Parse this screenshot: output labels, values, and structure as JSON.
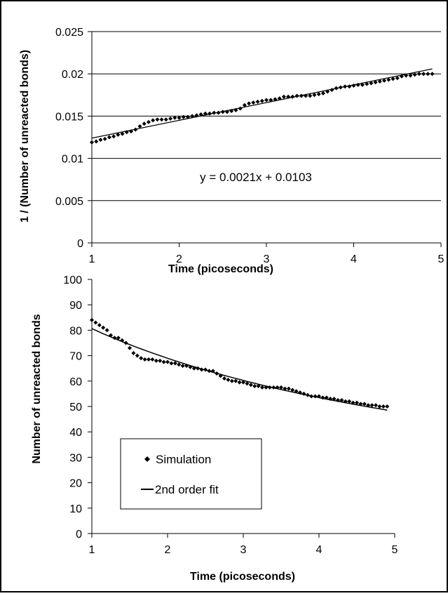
{
  "chart_data": [
    {
      "type": "scatter",
      "xlabel": "Time (picoseconds)",
      "ylabel": "1 / (Number of unreacted bonds)",
      "xlim": [
        1,
        5
      ],
      "ylim": [
        0,
        0.025
      ],
      "x_ticks": [
        "1",
        "2",
        "3",
        "4",
        "5"
      ],
      "y_ticks": [
        "0",
        "0.005",
        "0.01",
        "0.015",
        "0.02",
        "0.025"
      ],
      "grid": "horizontal",
      "annotation": "y = 0.0021x + 0.0103",
      "fit": {
        "type": "linear",
        "slope": 0.0021,
        "intercept": 0.0103,
        "x_range": [
          1,
          4.9
        ]
      },
      "series": [
        {
          "marker": "diamond",
          "points": [
            [
              1.0,
              0.0119
            ],
            [
              1.05,
              0.012
            ],
            [
              1.1,
              0.0122
            ],
            [
              1.15,
              0.0123
            ],
            [
              1.2,
              0.0125
            ],
            [
              1.25,
              0.0126
            ],
            [
              1.3,
              0.0128
            ],
            [
              1.35,
              0.0129
            ],
            [
              1.4,
              0.0131
            ],
            [
              1.45,
              0.0132
            ],
            [
              1.5,
              0.0134
            ],
            [
              1.55,
              0.0138
            ],
            [
              1.6,
              0.0141
            ],
            [
              1.65,
              0.0143
            ],
            [
              1.7,
              0.0145
            ],
            [
              1.75,
              0.0146
            ],
            [
              1.8,
              0.0146
            ],
            [
              1.85,
              0.0146
            ],
            [
              1.9,
              0.0147
            ],
            [
              1.95,
              0.0148
            ],
            [
              2.0,
              0.0148
            ],
            [
              2.05,
              0.0149
            ],
            [
              2.1,
              0.0149
            ],
            [
              2.15,
              0.015
            ],
            [
              2.2,
              0.0151
            ],
            [
              2.25,
              0.0152
            ],
            [
              2.3,
              0.0153
            ],
            [
              2.35,
              0.0153
            ],
            [
              2.4,
              0.0154
            ],
            [
              2.45,
              0.0154
            ],
            [
              2.5,
              0.0155
            ],
            [
              2.55,
              0.0155
            ],
            [
              2.6,
              0.0156
            ],
            [
              2.65,
              0.0157
            ],
            [
              2.7,
              0.0159
            ],
            [
              2.75,
              0.0163
            ],
            [
              2.8,
              0.0165
            ],
            [
              2.85,
              0.0166
            ],
            [
              2.9,
              0.0167
            ],
            [
              2.95,
              0.0168
            ],
            [
              3.0,
              0.0169
            ],
            [
              3.05,
              0.0169
            ],
            [
              3.1,
              0.017
            ],
            [
              3.15,
              0.0171
            ],
            [
              3.2,
              0.0173
            ],
            [
              3.25,
              0.0173
            ],
            [
              3.3,
              0.0173
            ],
            [
              3.35,
              0.0174
            ],
            [
              3.4,
              0.0174
            ],
            [
              3.45,
              0.0174
            ],
            [
              3.5,
              0.0174
            ],
            [
              3.55,
              0.0175
            ],
            [
              3.6,
              0.0176
            ],
            [
              3.65,
              0.0177
            ],
            [
              3.7,
              0.0179
            ],
            [
              3.75,
              0.0181
            ],
            [
              3.8,
              0.0183
            ],
            [
              3.85,
              0.0184
            ],
            [
              3.9,
              0.0185
            ],
            [
              3.95,
              0.0185
            ],
            [
              4.0,
              0.0186
            ],
            [
              4.05,
              0.0187
            ],
            [
              4.1,
              0.0187
            ],
            [
              4.15,
              0.0188
            ],
            [
              4.2,
              0.0189
            ],
            [
              4.25,
              0.019
            ],
            [
              4.3,
              0.0191
            ],
            [
              4.35,
              0.0192
            ],
            [
              4.4,
              0.0193
            ],
            [
              4.45,
              0.0194
            ],
            [
              4.5,
              0.0195
            ],
            [
              4.55,
              0.0197
            ],
            [
              4.6,
              0.0198
            ],
            [
              4.65,
              0.0198
            ],
            [
              4.7,
              0.0199
            ],
            [
              4.75,
              0.02
            ],
            [
              4.8,
              0.02
            ],
            [
              4.85,
              0.02
            ],
            [
              4.9,
              0.02
            ]
          ]
        }
      ]
    },
    {
      "type": "scatter",
      "xlabel": "Time (picoseconds)",
      "ylabel": "Number of unreacted bonds",
      "xlim": [
        1,
        5
      ],
      "ylim": [
        0,
        100
      ],
      "x_ticks": [
        "1",
        "2",
        "3",
        "4",
        "5"
      ],
      "y_ticks": [
        "0",
        "10",
        "20",
        "30",
        "40",
        "50",
        "60",
        "70",
        "80",
        "90",
        "100"
      ],
      "grid": "none",
      "legend_position": "lower-left",
      "series": [
        {
          "name": "Simulation",
          "marker": "diamond",
          "points": [
            [
              1.0,
              84
            ],
            [
              1.05,
              83
            ],
            [
              1.1,
              82
            ],
            [
              1.15,
              81
            ],
            [
              1.2,
              80
            ],
            [
              1.25,
              78
            ],
            [
              1.3,
              77
            ],
            [
              1.35,
              77
            ],
            [
              1.4,
              76
            ],
            [
              1.45,
              75
            ],
            [
              1.5,
              73
            ],
            [
              1.55,
              71
            ],
            [
              1.6,
              70
            ],
            [
              1.65,
              69
            ],
            [
              1.7,
              68.5
            ],
            [
              1.75,
              68.5
            ],
            [
              1.8,
              68.5
            ],
            [
              1.85,
              68
            ],
            [
              1.9,
              68
            ],
            [
              1.95,
              67.5
            ],
            [
              2.0,
              67.5
            ],
            [
              2.05,
              67
            ],
            [
              2.1,
              67
            ],
            [
              2.15,
              66.5
            ],
            [
              2.2,
              66
            ],
            [
              2.25,
              66
            ],
            [
              2.3,
              65.5
            ],
            [
              2.35,
              65
            ],
            [
              2.4,
              65
            ],
            [
              2.45,
              64.5
            ],
            [
              2.5,
              64.5
            ],
            [
              2.55,
              64
            ],
            [
              2.6,
              64
            ],
            [
              2.65,
              63
            ],
            [
              2.7,
              62
            ],
            [
              2.75,
              61
            ],
            [
              2.8,
              60.5
            ],
            [
              2.85,
              60
            ],
            [
              2.9,
              60
            ],
            [
              2.95,
              59.5
            ],
            [
              3.0,
              59.5
            ],
            [
              3.05,
              59
            ],
            [
              3.1,
              58.5
            ],
            [
              3.15,
              58
            ],
            [
              3.2,
              58
            ],
            [
              3.25,
              57.5
            ],
            [
              3.3,
              57.5
            ],
            [
              3.35,
              57.5
            ],
            [
              3.4,
              57.5
            ],
            [
              3.45,
              57.5
            ],
            [
              3.5,
              57.5
            ],
            [
              3.55,
              57
            ],
            [
              3.6,
              57
            ],
            [
              3.65,
              56.5
            ],
            [
              3.7,
              56
            ],
            [
              3.75,
              55.5
            ],
            [
              3.8,
              55
            ],
            [
              3.85,
              54.5
            ],
            [
              3.9,
              54
            ],
            [
              3.95,
              54
            ],
            [
              4.0,
              54
            ],
            [
              4.05,
              53.5
            ],
            [
              4.1,
              53.5
            ],
            [
              4.15,
              53
            ],
            [
              4.2,
              53
            ],
            [
              4.25,
              52.5
            ],
            [
              4.3,
              52.5
            ],
            [
              4.35,
              52
            ],
            [
              4.4,
              52
            ],
            [
              4.45,
              51.5
            ],
            [
              4.5,
              51.5
            ],
            [
              4.55,
              51
            ],
            [
              4.6,
              51
            ],
            [
              4.65,
              50.5
            ],
            [
              4.7,
              50.5
            ],
            [
              4.75,
              50.5
            ],
            [
              4.8,
              50
            ],
            [
              4.85,
              50
            ],
            [
              4.9,
              50
            ]
          ]
        },
        {
          "name": "2nd order fit",
          "type": "line",
          "formula": "1/(0.0103+0.0021x)",
          "x_range": [
            1,
            4.9
          ]
        }
      ]
    }
  ]
}
